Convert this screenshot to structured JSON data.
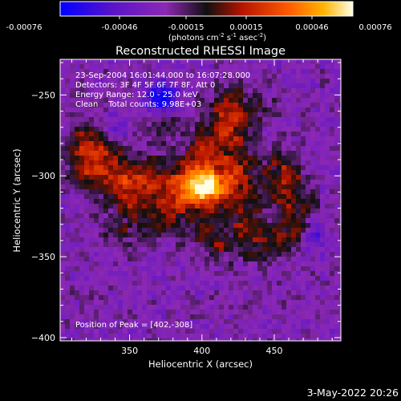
{
  "colorbar": {
    "ticks": [
      "-0.00076",
      "-0.00046",
      "-0.00015",
      "0.00015",
      "0.00046",
      "0.00076"
    ],
    "unit_main": "(photons cm",
    "unit_sup1": "-2",
    "unit_mid": " s",
    "unit_sup2": "-1",
    "unit_end": " asec",
    "unit_sup3": "-2",
    "unit_close": ")"
  },
  "info": {
    "time": "23-Sep-2004 16:01:44.000 to 16:07:28.000",
    "detectors": "Detectors: 3F 4F 5F 6F 7F 8F, Att 0",
    "energy": "Energy Range: 12.0 - 25.0 keV",
    "clean": "Clean    Total counts: 9.98E+03",
    "peak": "Position of Peak = [402,-308]"
  },
  "footer": {
    "date": "3-May-2022 20:26"
  },
  "chart_data": {
    "type": "heatmap",
    "title": "Reconstructed RHESSI Image",
    "xlabel": "Heliocentric X (arcsec)",
    "ylabel": "Heliocentric Y (arcsec)",
    "xlim": [
      302,
      496
    ],
    "ylim": [
      -402,
      -228
    ],
    "x_ticks": [
      350,
      400,
      450
    ],
    "y_ticks": [
      -250,
      -300,
      -350,
      -400
    ],
    "zlim": [
      -0.00076,
      0.00076
    ],
    "peak": [
      402,
      -308
    ],
    "sources": [
      {
        "x": 402,
        "y": -308,
        "amp": 0.00076,
        "sx": 10,
        "sy": 8
      },
      {
        "x": 395,
        "y": -300,
        "amp": 0.00042,
        "sx": 14,
        "sy": 12
      },
      {
        "x": 380,
        "y": -318,
        "amp": 0.00034,
        "sx": 10,
        "sy": 8
      },
      {
        "x": 360,
        "y": -302,
        "amp": 0.00038,
        "sx": 12,
        "sy": 9
      },
      {
        "x": 340,
        "y": -302,
        "amp": 0.00036,
        "sx": 10,
        "sy": 10
      },
      {
        "x": 322,
        "y": -296,
        "amp": 0.00032,
        "sx": 9,
        "sy": 11
      },
      {
        "x": 318,
        "y": -280,
        "amp": 0.00026,
        "sx": 8,
        "sy": 10
      },
      {
        "x": 332,
        "y": -282,
        "amp": 0.00024,
        "sx": 10,
        "sy": 8
      },
      {
        "x": 352,
        "y": -318,
        "amp": 0.00026,
        "sx": 9,
        "sy": 7
      },
      {
        "x": 345,
        "y": -335,
        "amp": 0.0002,
        "sx": 8,
        "sy": 8
      },
      {
        "x": 368,
        "y": -332,
        "amp": 0.00022,
        "sx": 8,
        "sy": 7
      },
      {
        "x": 420,
        "y": -275,
        "amp": 0.00036,
        "sx": 10,
        "sy": 14
      },
      {
        "x": 418,
        "y": -258,
        "amp": 0.00026,
        "sx": 9,
        "sy": 9
      },
      {
        "x": 425,
        "y": -300,
        "amp": 0.0003,
        "sx": 9,
        "sy": 9
      },
      {
        "x": 428,
        "y": -325,
        "amp": 0.0003,
        "sx": 8,
        "sy": 12
      },
      {
        "x": 442,
        "y": -342,
        "amp": 0.00028,
        "sx": 9,
        "sy": 10
      },
      {
        "x": 455,
        "y": -300,
        "amp": 0.00036,
        "sx": 11,
        "sy": 12
      },
      {
        "x": 465,
        "y": -318,
        "amp": 0.00022,
        "sx": 9,
        "sy": 8
      },
      {
        "x": 462,
        "y": -335,
        "amp": 0.00028,
        "sx": 9,
        "sy": 9
      },
      {
        "x": 440,
        "y": -258,
        "amp": 0.00018,
        "sx": 8,
        "sy": 7
      },
      {
        "x": 412,
        "y": -342,
        "amp": 0.00024,
        "sx": 8,
        "sy": 9
      },
      {
        "x": 398,
        "y": -335,
        "amp": 0.00018,
        "sx": 8,
        "sy": 8
      },
      {
        "x": 375,
        "y": -268,
        "amp": 0.00016,
        "sx": 8,
        "sy": 7
      },
      {
        "x": 400,
        "y": -278,
        "amp": 0.0002,
        "sx": 8,
        "sy": 8
      },
      {
        "x": 372,
        "y": -252,
        "amp": -0.00055,
        "sx": 7,
        "sy": 7
      },
      {
        "x": 338,
        "y": -272,
        "amp": -0.00022,
        "sx": 7,
        "sy": 6
      },
      {
        "x": 478,
        "y": -338,
        "amp": -0.00025,
        "sx": 7,
        "sy": 6
      }
    ]
  }
}
